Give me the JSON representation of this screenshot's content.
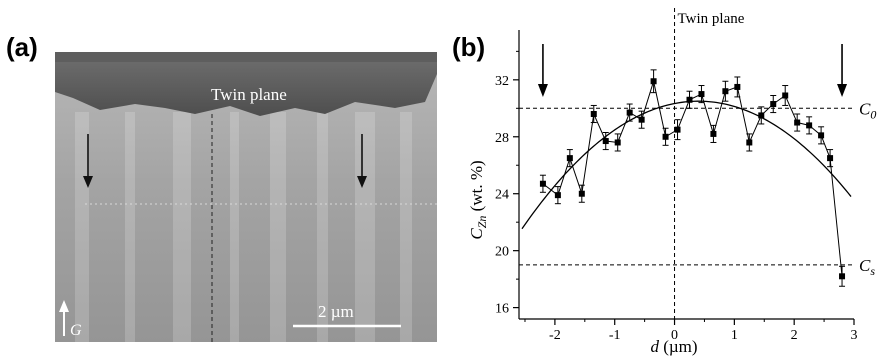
{
  "panel_a": {
    "label": "(a)",
    "twin_plane_label": "Twin plane",
    "scale_bar_label": "2 µm",
    "growth_label": "G",
    "colors": {
      "background": "#9c9c9c",
      "dark_band": "#585858",
      "scale_bar": "#ffffff"
    }
  },
  "panel_b": {
    "label": "(b)"
  },
  "chart_data": {
    "type": "scatter",
    "title": "",
    "xlabel_main": "d",
    "xlabel_unit": " (µm)",
    "ylabel_main": "C",
    "ylabel_sub": "Zn",
    "ylabel_unit": " (wt. %)",
    "xlim": [
      -2.6,
      3.0
    ],
    "ylim": [
      15.2,
      35.5
    ],
    "x_ticks": [
      -2,
      -1,
      0,
      1,
      2,
      3
    ],
    "x_tick_labels": [
      "-2",
      "-1",
      "0",
      "1",
      "2",
      "3"
    ],
    "y_ticks": [
      16,
      20,
      24,
      28,
      32
    ],
    "y_tick_labels": [
      "16",
      "20",
      "24",
      "28",
      "32"
    ],
    "series": [
      {
        "style": "markers with error bars, connected by straight lines",
        "x": [
          -2.2,
          -1.95,
          -1.75,
          -1.55,
          -1.35,
          -1.15,
          -0.95,
          -0.75,
          -0.55,
          -0.35,
          -0.15,
          0.05,
          0.25,
          0.45,
          0.65,
          0.85,
          1.05,
          1.25,
          1.45,
          1.65,
          1.85,
          2.05,
          2.25,
          2.45,
          2.6,
          2.8
        ],
        "y": [
          24.7,
          23.9,
          26.5,
          24.0,
          29.6,
          27.7,
          27.6,
          29.7,
          29.2,
          31.9,
          28.0,
          28.5,
          30.6,
          31.0,
          28.2,
          31.2,
          31.5,
          27.6,
          29.5,
          30.3,
          30.9,
          29.0,
          28.8,
          28.1,
          26.5,
          18.2
        ],
        "error": [
          0.6,
          0.6,
          0.6,
          0.6,
          0.6,
          0.6,
          0.6,
          0.6,
          0.6,
          0.8,
          0.6,
          0.7,
          0.6,
          0.6,
          0.6,
          0.7,
          0.7,
          0.6,
          0.6,
          0.6,
          0.7,
          0.6,
          0.6,
          0.6,
          0.6,
          0.7
        ]
      },
      {
        "style": "smooth fitted curve",
        "vertex_x": 0.4,
        "vertex_y": 30.5,
        "curvature": 1.03,
        "x_range": [
          -2.55,
          2.95
        ]
      }
    ],
    "reference_lines": {
      "horizontal": [
        {
          "y": 30.0,
          "label": "C",
          "sub": "0"
        },
        {
          "y": 19.0,
          "label": "C",
          "sub": "s"
        }
      ],
      "vertical": [
        {
          "x": 0,
          "label": "Twin plane"
        }
      ]
    },
    "arrows_at_x": [
      -2.2,
      2.8
    ],
    "grid": false,
    "legend": "none"
  }
}
